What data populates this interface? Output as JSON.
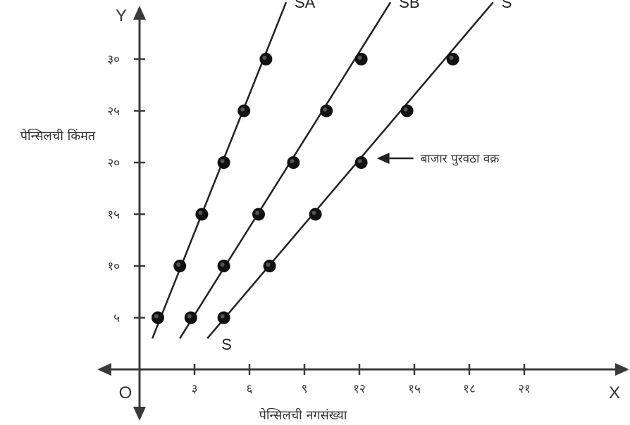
{
  "chart_data": {
    "type": "line",
    "axis_letters": {
      "x": "X",
      "y": "Y",
      "origin": "O"
    },
    "xlabel": "पेन्सिलची नगसंख्या",
    "ylabel": "पेन्सिलची किंमत",
    "xlim": [
      0,
      22.5
    ],
    "ylim": [
      0,
      34
    ],
    "x_ticks": [
      {
        "value": 3,
        "label": "३"
      },
      {
        "value": 6,
        "label": "६"
      },
      {
        "value": 9,
        "label": "९"
      },
      {
        "value": 12,
        "label": "१२"
      },
      {
        "value": 15,
        "label": "१५"
      },
      {
        "value": 18,
        "label": "१८"
      },
      {
        "value": 21,
        "label": "२१"
      }
    ],
    "y_ticks": [
      {
        "value": 5,
        "label": "५"
      },
      {
        "value": 10,
        "label": "१०"
      },
      {
        "value": 15,
        "label": "१५"
      },
      {
        "value": 20,
        "label": "२०"
      },
      {
        "value": 25,
        "label": "२५"
      },
      {
        "value": 30,
        "label": "३०"
      }
    ],
    "grid": false,
    "series": [
      {
        "name": "SA",
        "points": [
          [
            1,
            5
          ],
          [
            2.2,
            10
          ],
          [
            3.4,
            15
          ],
          [
            4.6,
            20
          ],
          [
            5.7,
            25
          ],
          [
            6.9,
            30
          ]
        ],
        "line": [
          [
            0.7,
            3
          ],
          [
            8,
            35.5
          ]
        ]
      },
      {
        "name": "SB",
        "points": [
          [
            2.8,
            5
          ],
          [
            4.6,
            10
          ],
          [
            6.5,
            15
          ],
          [
            8.4,
            20
          ],
          [
            10.2,
            25
          ],
          [
            12.1,
            30
          ]
        ],
        "line": [
          [
            2.2,
            3
          ],
          [
            13.7,
            35.5
          ]
        ]
      },
      {
        "name": "S",
        "points": [
          [
            4.6,
            5
          ],
          [
            7.1,
            10
          ],
          [
            9.6,
            15
          ],
          [
            12.1,
            20
          ],
          [
            14.6,
            25
          ],
          [
            17.1,
            30
          ]
        ],
        "line": [
          [
            3.7,
            3
          ],
          [
            19.3,
            35.5
          ]
        ],
        "bottom_label": "S"
      }
    ],
    "annotation": {
      "text": "बाजार पुरवठा वक्र",
      "target": [
        12.1,
        20
      ]
    }
  }
}
